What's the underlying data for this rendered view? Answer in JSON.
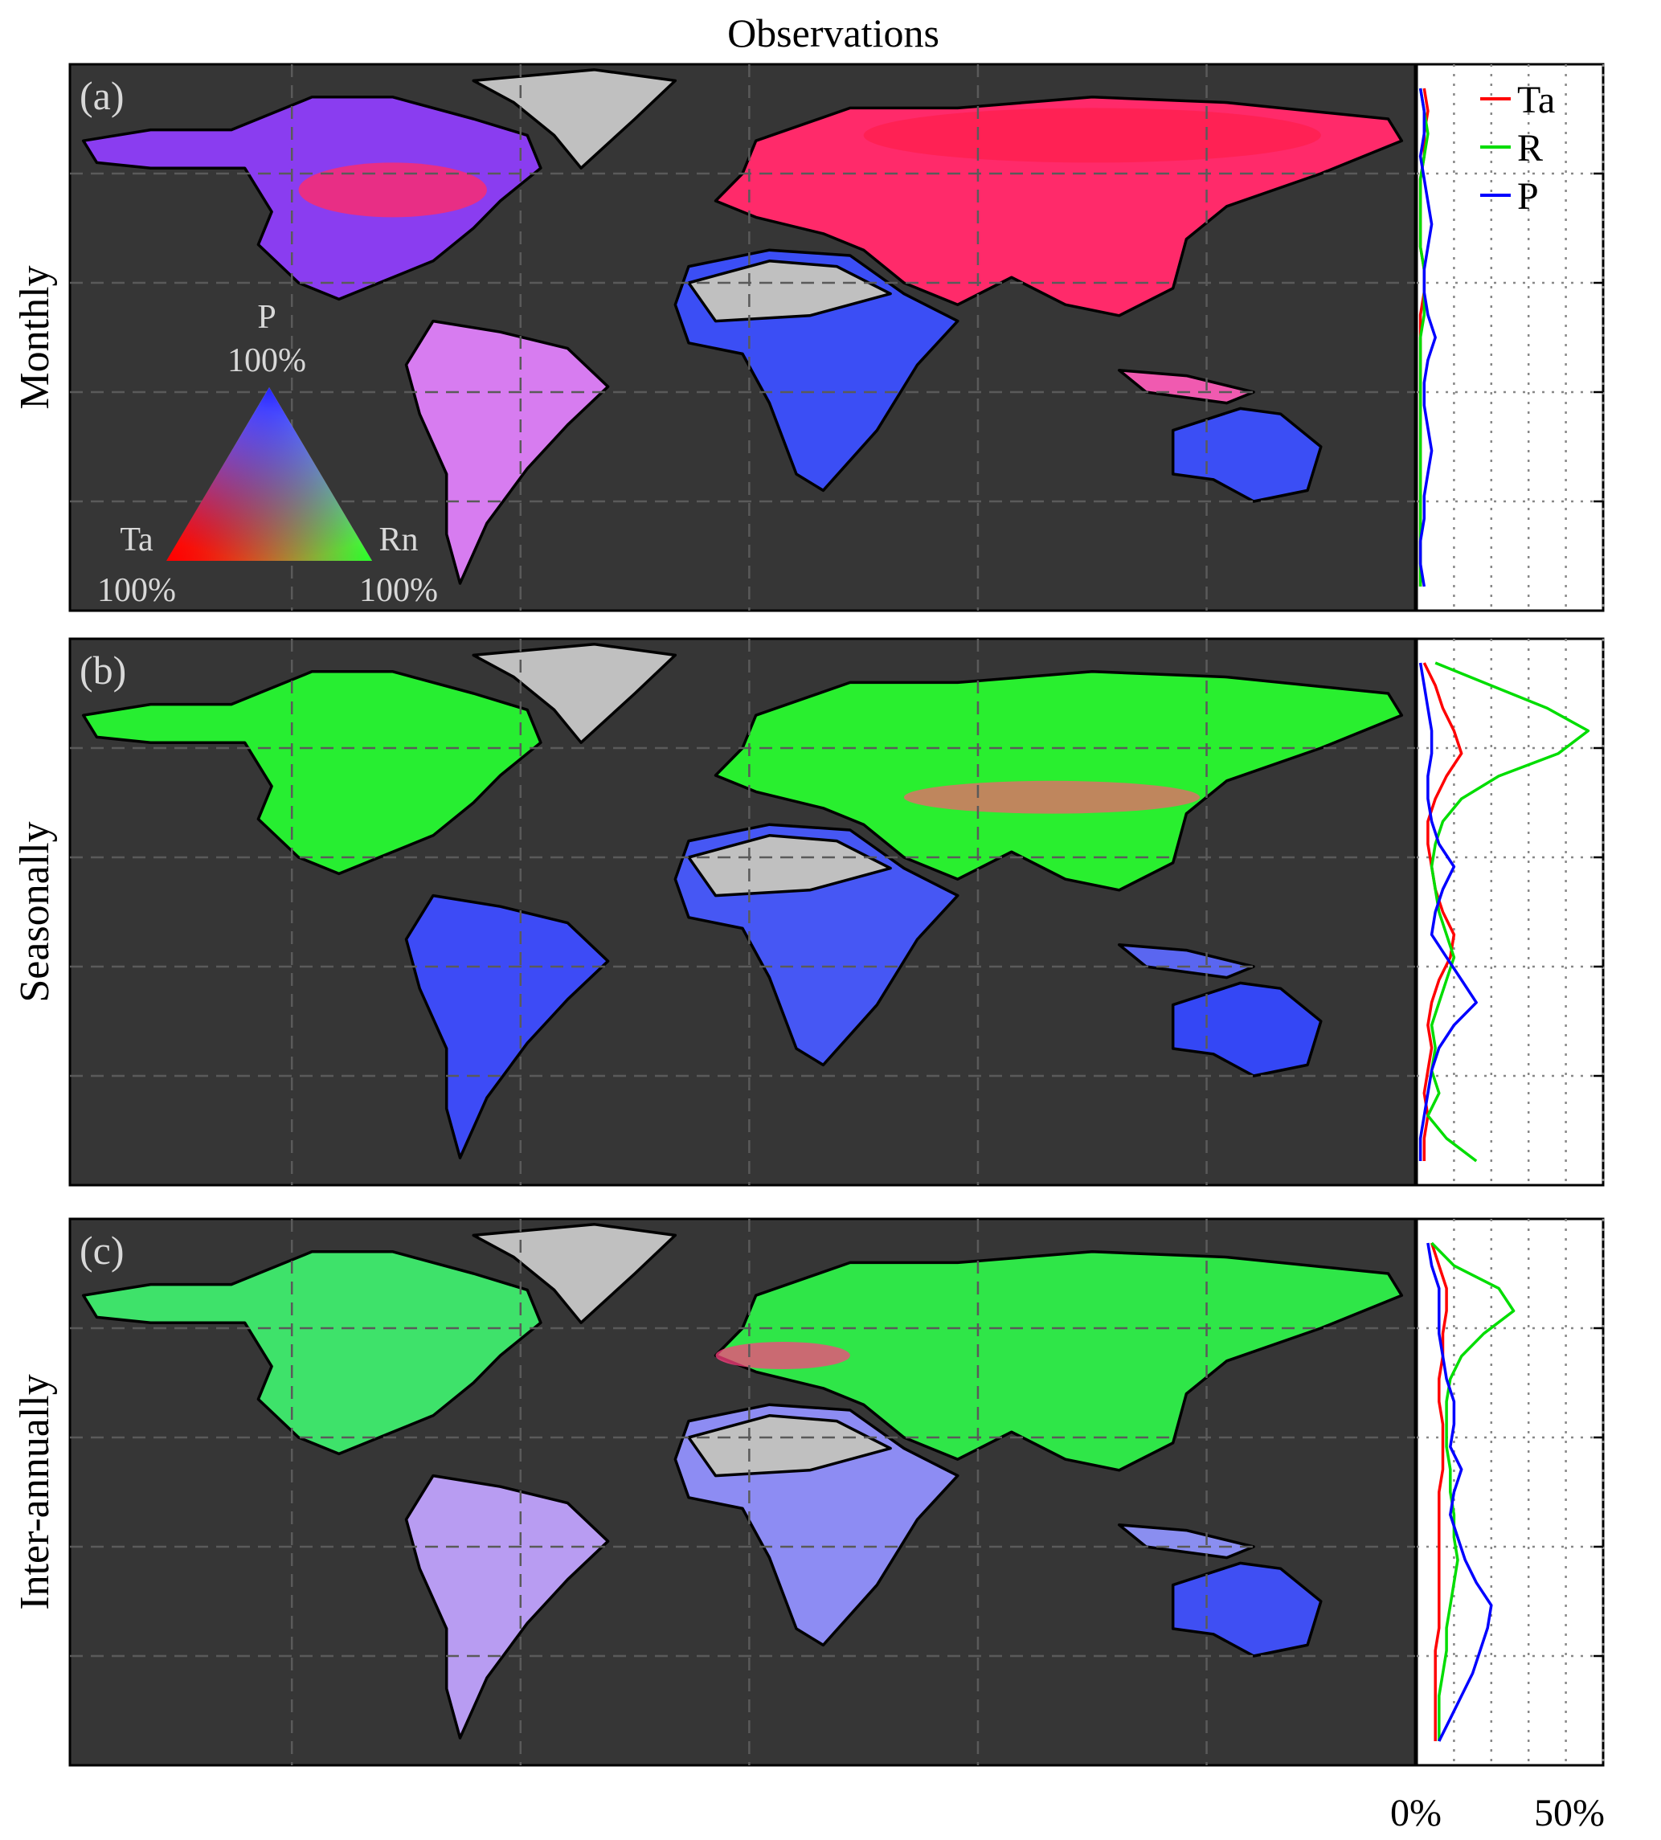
{
  "title": "Observations",
  "rows": [
    {
      "row_label": "Monthly",
      "panel_label": "(a)",
      "profile": {
        "Ta": [
          2,
          3,
          2,
          2,
          1,
          1,
          1,
          1,
          2,
          2,
          1,
          1,
          1,
          1,
          1,
          1,
          1,
          1,
          1,
          1,
          1,
          1,
          1
        ],
        "R": [
          1,
          2,
          3,
          2,
          1,
          1,
          1,
          1,
          2,
          2,
          2,
          1,
          1,
          1,
          1,
          1,
          1,
          1,
          1,
          1,
          1,
          1,
          1
        ],
        "P": [
          1,
          2,
          2,
          1,
          2,
          3,
          4,
          3,
          2,
          2,
          3,
          5,
          3,
          2,
          2,
          3,
          4,
          3,
          2,
          2,
          1,
          1,
          2
        ]
      }
    },
    {
      "row_label": "Seasonally",
      "panel_label": "(b)",
      "profile": {
        "Ta": [
          2,
          5,
          7,
          10,
          12,
          8,
          5,
          3,
          3,
          4,
          5,
          7,
          10,
          9,
          6,
          4,
          3,
          4,
          3,
          2,
          3,
          2,
          2
        ],
        "R": [
          5,
          20,
          35,
          46,
          38,
          22,
          12,
          7,
          5,
          4,
          5,
          6,
          8,
          10,
          8,
          6,
          4,
          5,
          4,
          6,
          3,
          8,
          16
        ],
        "P": [
          1,
          2,
          3,
          4,
          4,
          3,
          3,
          4,
          6,
          10,
          7,
          5,
          4,
          8,
          12,
          16,
          10,
          6,
          4,
          3,
          2,
          1,
          1
        ]
      }
    },
    {
      "row_label": "Inter-annually",
      "panel_label": "(c)",
      "profile": {
        "Ta": [
          4,
          6,
          8,
          8,
          7,
          7,
          6,
          6,
          7,
          7,
          7,
          6,
          6,
          6,
          6,
          6,
          6,
          6,
          5,
          5,
          5,
          5,
          5
        ],
        "R": [
          4,
          10,
          22,
          26,
          18,
          12,
          9,
          8,
          8,
          8,
          9,
          9,
          10,
          10,
          11,
          10,
          9,
          8,
          8,
          7,
          6,
          6,
          6
        ],
        "P": [
          3,
          4,
          6,
          6,
          6,
          7,
          8,
          10,
          10,
          9,
          12,
          10,
          9,
          11,
          13,
          16,
          20,
          19,
          17,
          15,
          12,
          9,
          6
        ]
      }
    }
  ],
  "ternary": {
    "top_label": "P",
    "top_pct": "100%",
    "left_label": "Ta",
    "left_pct": "100%",
    "right_label": "Rn",
    "right_pct": "100%"
  },
  "legend": [
    {
      "name": "Ta",
      "color": "#ff0000"
    },
    {
      "name": "R",
      "color": "#00dd00"
    },
    {
      "name": "P",
      "color": "#0000ff"
    }
  ],
  "profile_axis": {
    "min_label": "0%",
    "max_label": "50%",
    "xlim": [
      0,
      50
    ]
  },
  "colors": {
    "ocean": "#363636",
    "no_data_land": "#c0c0c0",
    "Ta": "#ff0000",
    "R": "#00dd00",
    "P": "#0000ff"
  }
}
